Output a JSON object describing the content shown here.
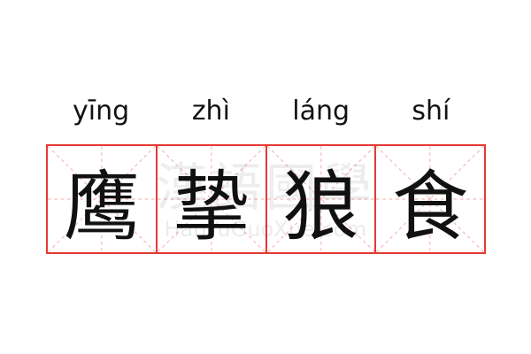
{
  "idiom": {
    "pinyin": [
      "yīng",
      "zhì",
      "láng",
      "shí"
    ],
    "characters": [
      "鹰",
      "挚",
      "狼",
      "食"
    ]
  },
  "watermark": {
    "logo_text": "漢語國學",
    "site": "HanYuGuoXue.com"
  },
  "colors": {
    "grid_border": "#e53935",
    "guide_lines": "#f4a9a9",
    "text": "#111111"
  }
}
